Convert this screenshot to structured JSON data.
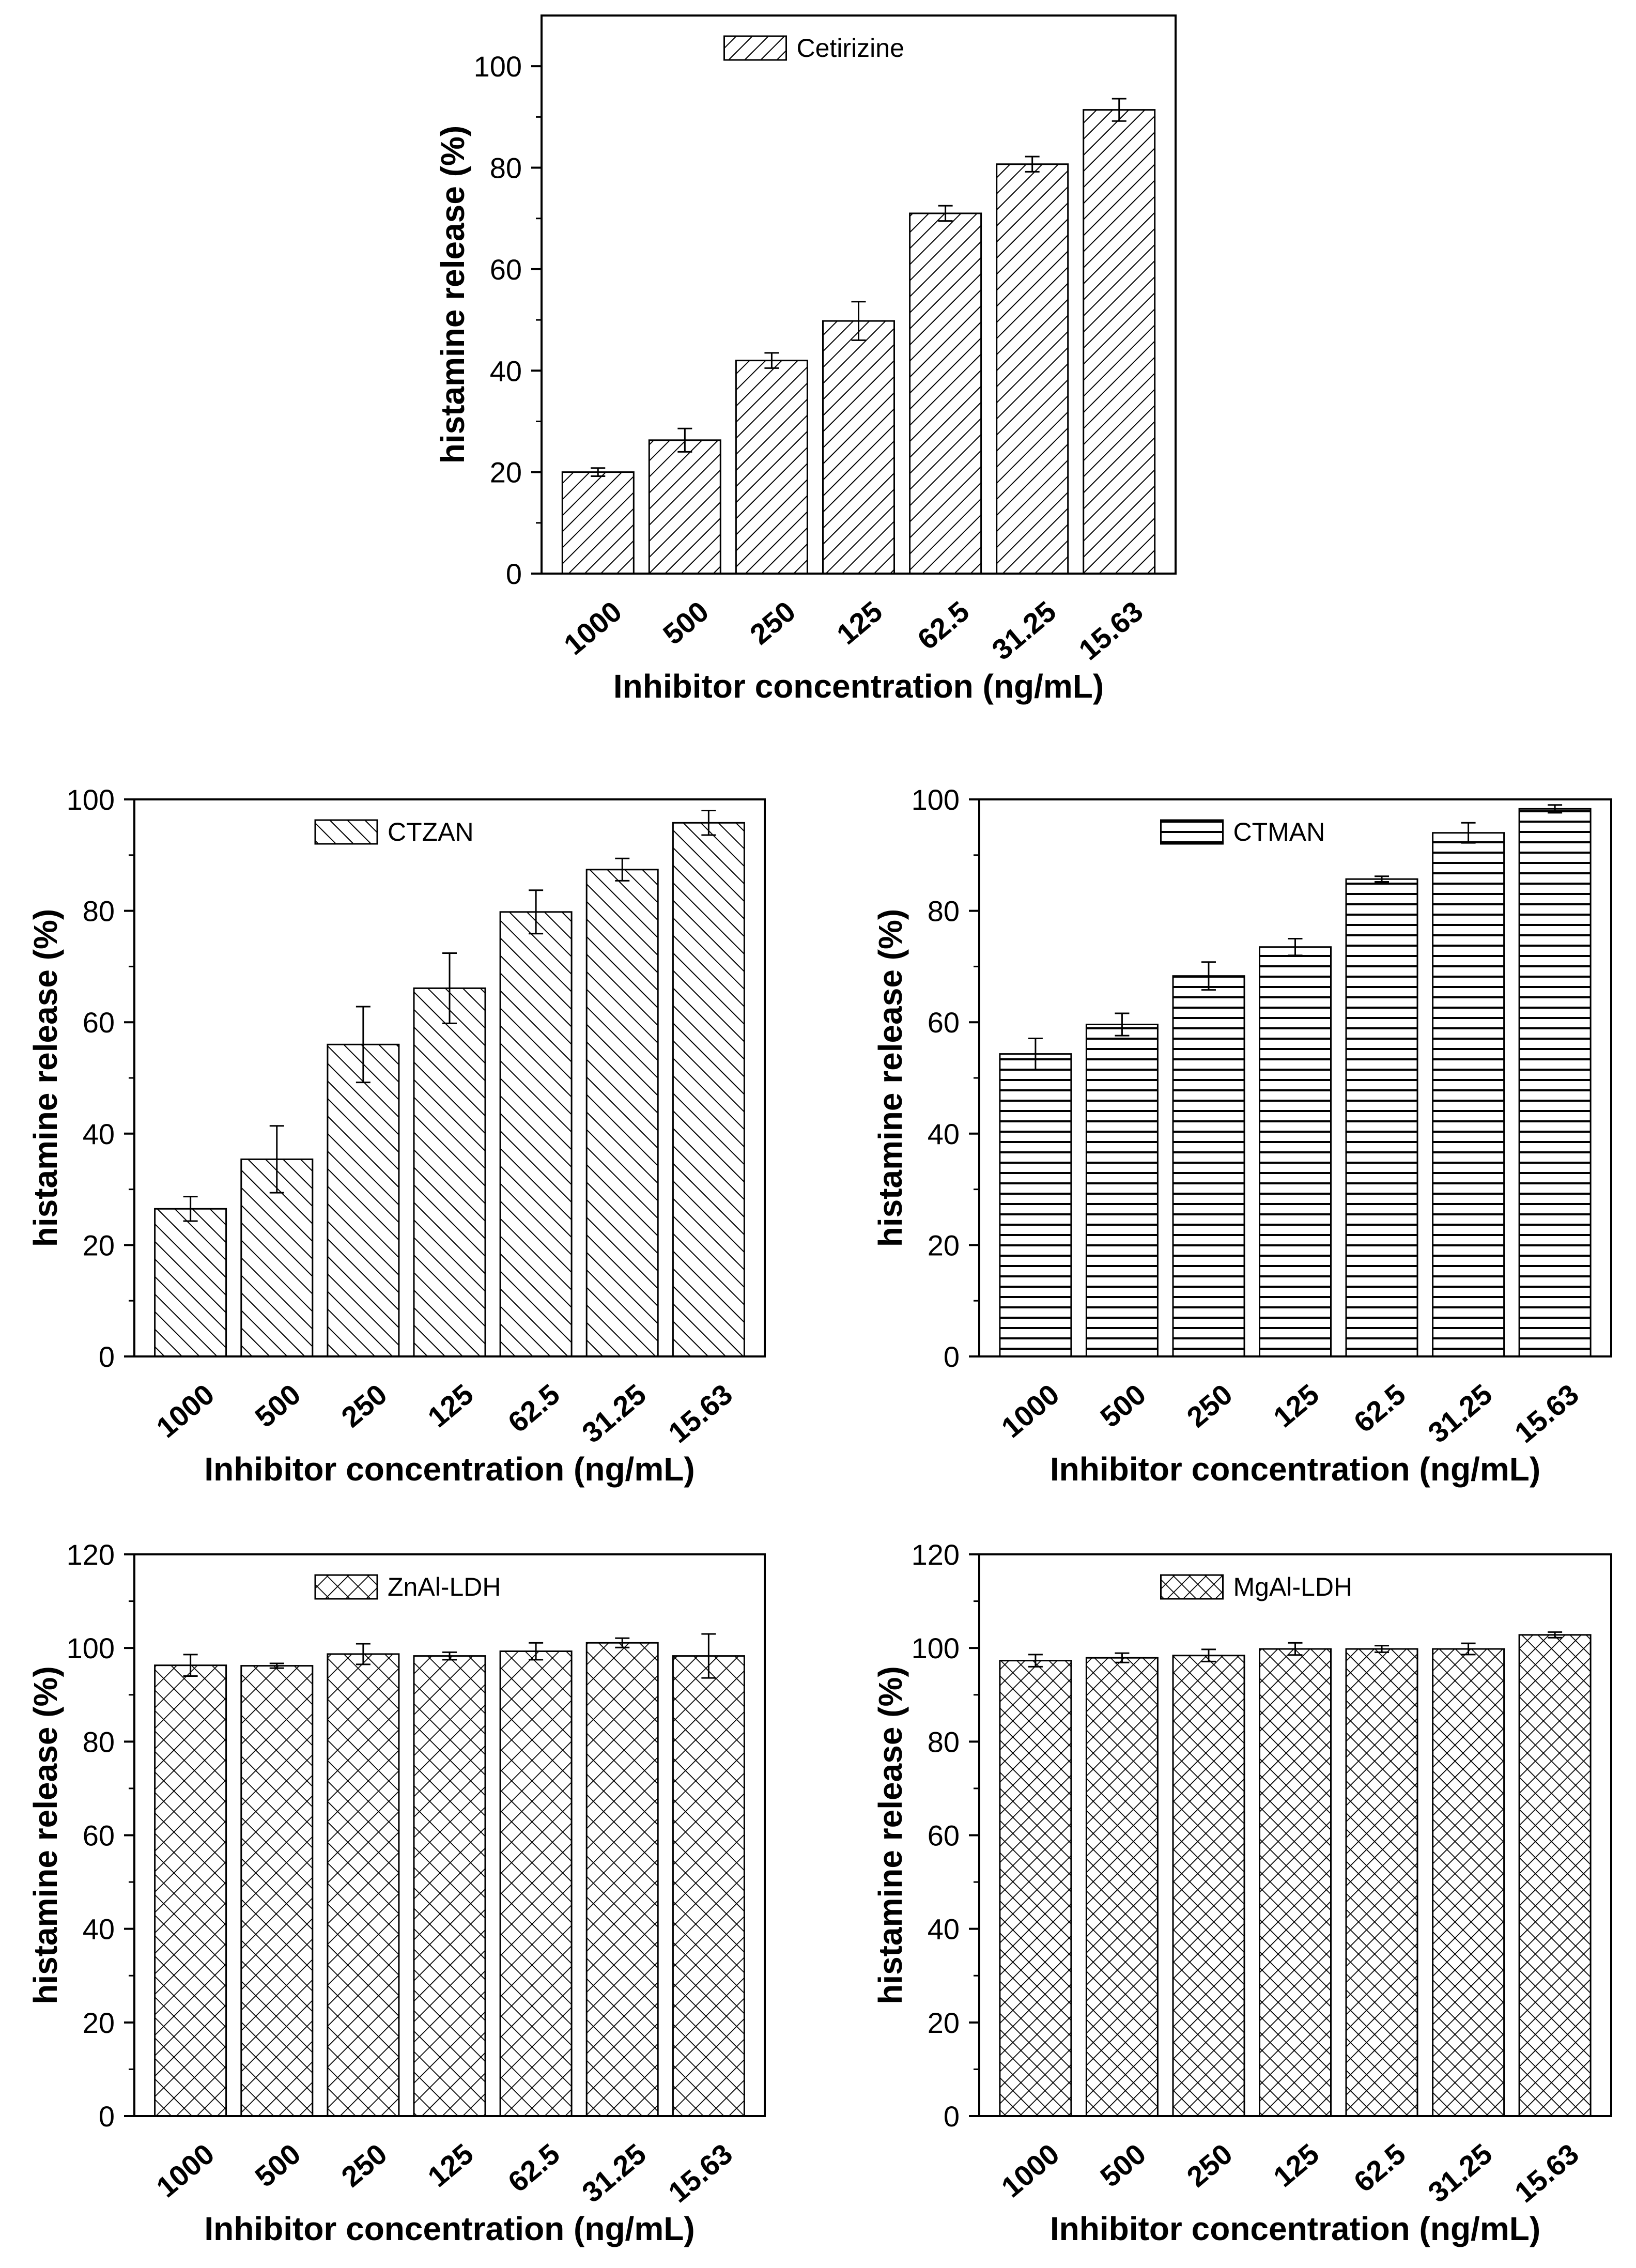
{
  "figure_name": "histamine-release-panels",
  "chart_data": [
    {
      "type": "bar",
      "panel": "cetirizine",
      "pattern": "diag-right",
      "legend": "Cetirizine",
      "xlabel": "Inhibitor concentration (ng/mL)",
      "ylabel": "histamine release (%)",
      "categories": [
        "1000",
        "500",
        "250",
        "125",
        "62.5",
        "31.25",
        "15.63"
      ],
      "values": [
        20,
        26.3,
        42,
        49.8,
        71,
        80.7,
        91.4
      ],
      "errors": [
        0.8,
        2.3,
        1.5,
        3.8,
        1.5,
        1.5,
        2.2
      ],
      "ylim": [
        0,
        110
      ],
      "yticks": [
        0,
        20,
        40,
        60,
        80,
        100
      ]
    },
    {
      "type": "bar",
      "panel": "ctzan",
      "pattern": "diag-left",
      "legend": "CTZAN",
      "xlabel": "Inhibitor concentration (ng/mL)",
      "ylabel": "histamine release (%)",
      "categories": [
        "1000",
        "500",
        "250",
        "125",
        "62.5",
        "31.25",
        "15.63"
      ],
      "values": [
        26.5,
        35.4,
        56,
        66.1,
        79.8,
        87.4,
        95.8
      ],
      "errors": [
        2.2,
        6,
        6.8,
        6.3,
        3.9,
        2,
        2.2
      ],
      "ylim": [
        0,
        100
      ],
      "yticks": [
        0,
        20,
        40,
        60,
        80,
        100
      ]
    },
    {
      "type": "bar",
      "panel": "ctman",
      "pattern": "horizontal",
      "legend": "CTMAN",
      "xlabel": "Inhibitor concentration (ng/mL)",
      "ylabel": "histamine release (%)",
      "categories": [
        "1000",
        "500",
        "250",
        "125",
        "62.5",
        "31.25",
        "15.63"
      ],
      "values": [
        54.3,
        59.6,
        68.3,
        73.5,
        85.7,
        94,
        98.3
      ],
      "errors": [
        2.8,
        2,
        2.5,
        1.5,
        0.5,
        1.8,
        0.7
      ],
      "ylim": [
        0,
        100
      ],
      "yticks": [
        0,
        20,
        40,
        60,
        80,
        100
      ]
    },
    {
      "type": "bar",
      "panel": "znal-ldh",
      "pattern": "crosshatch",
      "legend": "ZnAl-LDH",
      "xlabel": "Inhibitor concentration (ng/mL)",
      "ylabel": "histamine release (%)",
      "categories": [
        "1000",
        "500",
        "250",
        "125",
        "62.5",
        "31.25",
        "15.63"
      ],
      "values": [
        96.3,
        96.2,
        98.7,
        98.3,
        99.3,
        101.1,
        98.3
      ],
      "errors": [
        2.3,
        0.5,
        2.2,
        0.8,
        1.8,
        1,
        4.7
      ],
      "ylim": [
        0,
        120
      ],
      "yticks": [
        0,
        20,
        40,
        60,
        80,
        100,
        120
      ]
    },
    {
      "type": "bar",
      "panel": "mgal-ldh",
      "pattern": "crosshatch-fine",
      "legend": "MgAl-LDH",
      "xlabel": "Inhibitor concentration (ng/mL)",
      "ylabel": "histamine release (%)",
      "categories": [
        "1000",
        "500",
        "250",
        "125",
        "62.5",
        "31.25",
        "15.63"
      ],
      "values": [
        97.3,
        97.9,
        98.4,
        99.8,
        99.8,
        99.8,
        102.8
      ],
      "errors": [
        1.3,
        1,
        1.3,
        1.3,
        0.7,
        1.2,
        0.6
      ],
      "ylim": [
        0,
        120
      ],
      "yticks": [
        0,
        20,
        40,
        60,
        80,
        100,
        120
      ]
    }
  ]
}
